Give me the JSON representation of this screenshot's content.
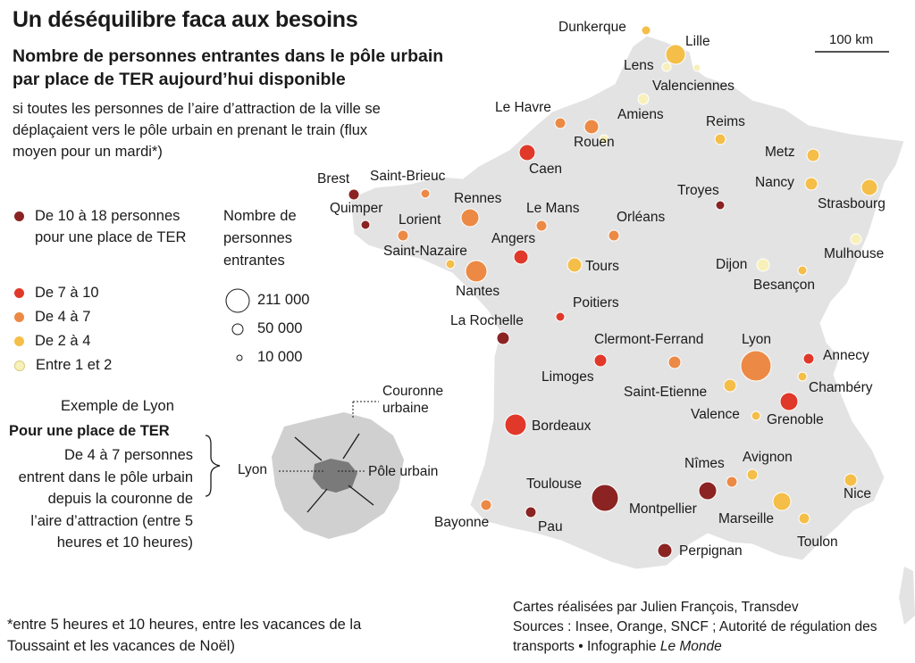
{
  "title": "Un déséquilibre faca aux besoins",
  "subtitle": "Nombre de personnes entrantes dans le pôle urbain par place de TER aujourd’hui disponible",
  "description": "si toutes les personnes de l’aire d’attraction de la ville se déplaçaient vers le pôle urbain en prenant le train (flux moyen pour un mardi*)",
  "legend_color": [
    {
      "label": "De 10 à 18 personnes pour une place de TER",
      "color": "#8b2323"
    },
    {
      "label": "De 7 à 10",
      "color": "#e0392a"
    },
    {
      "label": "De 4 à 7",
      "color": "#ec8a45"
    },
    {
      "label": "De 2 à 4",
      "color": "#f4be48"
    },
    {
      "label": "Entre 1 et 2",
      "color": "#f8f0ba"
    }
  ],
  "legend_size": {
    "title": "Nombre de personnes entrantes",
    "items": [
      "211 000",
      "50 000",
      "10 000"
    ]
  },
  "example": {
    "title": "Exemple de Lyon",
    "bold": "Pour une place de TER",
    "text": "De 4 à 7 personnes entrent dans le pôle urbain depuis la couronne de l’aire d’attraction (entre 5 heures et 10 heures)",
    "label_lyon": "Lyon",
    "label_couronne": "Couronne urbaine",
    "label_pole": "Pôle urbain"
  },
  "footnote": "*entre 5 heures et 10 heures, entre les vacances de la Toussaint et les vacances de Noël)",
  "credits_line1": "Cartes réalisées par Julien François, Transdev",
  "credits_line2": "Sources : Insee, Orange, SNCF ; Autorité de régulation des transports • Infographie",
  "credits_italic": "Le Monde",
  "scale_label": "100 km",
  "cities": [
    {
      "name": "Dunkerque",
      "category": "Entre 1 et 2"
    },
    {
      "name": "Lille",
      "category": "De 2 à 4"
    },
    {
      "name": "Lens",
      "category": "Entre 1 et 2"
    },
    {
      "name": "Valenciennes",
      "category": "Entre 1 et 2"
    },
    {
      "name": "Le Havre",
      "category": "De 4 à 7"
    },
    {
      "name": "Amiens",
      "category": "Entre 1 et 2"
    },
    {
      "name": "Rouen",
      "category": "De 4 à 7"
    },
    {
      "name": "Reims",
      "category": "De 2 à 4"
    },
    {
      "name": "Caen",
      "category": "De 7 à 10"
    },
    {
      "name": "Metz",
      "category": "De 2 à 4"
    },
    {
      "name": "Brest",
      "category": "De 10 à 18 personnes pour une place de TER"
    },
    {
      "name": "Saint-Brieuc",
      "category": "De 4 à 7"
    },
    {
      "name": "Nancy",
      "category": "De 2 à 4"
    },
    {
      "name": "Troyes",
      "category": "De 10 à 18 personnes pour une place de TER"
    },
    {
      "name": "Strasbourg",
      "category": "De 2 à 4"
    },
    {
      "name": "Quimper",
      "category": "De 10 à 18 personnes pour une place de TER"
    },
    {
      "name": "Rennes",
      "category": "De 4 à 7"
    },
    {
      "name": "Le Mans",
      "category": "De 4 à 7"
    },
    {
      "name": "Lorient",
      "category": "De 4 à 7"
    },
    {
      "name": "Orléans",
      "category": "De 4 à 7"
    },
    {
      "name": "Angers",
      "category": "De 7 à 10"
    },
    {
      "name": "Mulhouse",
      "category": "Entre 1 et 2"
    },
    {
      "name": "Saint-Nazaire",
      "category": "De 2 à 4"
    },
    {
      "name": "Dijon",
      "category": "Entre 1 et 2"
    },
    {
      "name": "Tours",
      "category": "De 2 à 4"
    },
    {
      "name": "Besançon",
      "category": "De 2 à 4"
    },
    {
      "name": "Nantes",
      "category": "De 4 à 7"
    },
    {
      "name": "Poitiers",
      "category": "De 7 à 10"
    },
    {
      "name": "La Rochelle",
      "category": "De 10 à 18 personnes pour une place de TER"
    },
    {
      "name": "Clermont-Ferrand",
      "category": "De 4 à 7"
    },
    {
      "name": "Lyon",
      "category": "De 4 à 7"
    },
    {
      "name": "Annecy",
      "category": "De 7 à 10"
    },
    {
      "name": "Limoges",
      "category": "De 7 à 10"
    },
    {
      "name": "Chambéry",
      "category": "De 2 à 4"
    },
    {
      "name": "Saint-Etienne",
      "category": "De 2 à 4"
    },
    {
      "name": "Valence",
      "category": "De 2 à 4"
    },
    {
      "name": "Grenoble",
      "category": "De 7 à 10"
    },
    {
      "name": "Bordeaux",
      "category": "De 7 à 10"
    },
    {
      "name": "Nîmes",
      "category": "De 4 à 7"
    },
    {
      "name": "Avignon",
      "category": "De 2 à 4"
    },
    {
      "name": "Toulouse",
      "category": "De 10 à 18 personnes pour une place de TER"
    },
    {
      "name": "Nice",
      "category": "De 2 à 4"
    },
    {
      "name": "Montpellier",
      "category": "De 10 à 18 personnes pour une place de TER"
    },
    {
      "name": "Bayonne",
      "category": "De 4 à 7"
    },
    {
      "name": "Marseille",
      "category": "De 2 à 4"
    },
    {
      "name": "Pau",
      "category": "De 10 à 18 personnes pour une place de TER"
    },
    {
      "name": "Toulon",
      "category": "De 2 à 4"
    },
    {
      "name": "Perpignan",
      "category": "De 10 à 18 personnes pour une place de TER"
    }
  ]
}
